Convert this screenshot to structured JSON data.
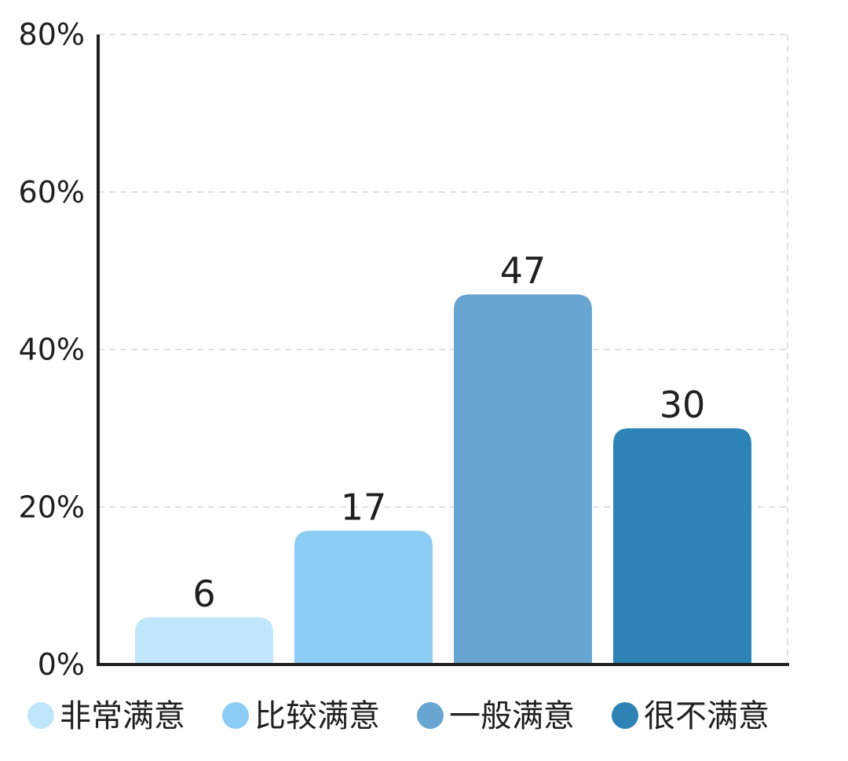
{
  "chart_data": {
    "type": "bar",
    "title": "",
    "xlabel": "",
    "ylabel": "",
    "categories": [
      "非常满意",
      "比较满意",
      "一般满意",
      "很不满意"
    ],
    "values": [
      6,
      17,
      47,
      30
    ],
    "colors": [
      "#c0e6fc",
      "#8ccdf5",
      "#68a5d1",
      "#2e83b6"
    ],
    "ylim": [
      0,
      80
    ],
    "yticks": [
      0,
      20,
      40,
      60,
      80
    ],
    "ytick_labels": [
      "0%",
      "20%",
      "40%",
      "60%",
      "80%"
    ],
    "data_labels": [
      "6",
      "17",
      "47",
      "30"
    ],
    "grid": true,
    "legend": {
      "position": "bottom",
      "entries": [
        "非常满意",
        "比较满意",
        "一般满意",
        "很不满意"
      ]
    }
  }
}
